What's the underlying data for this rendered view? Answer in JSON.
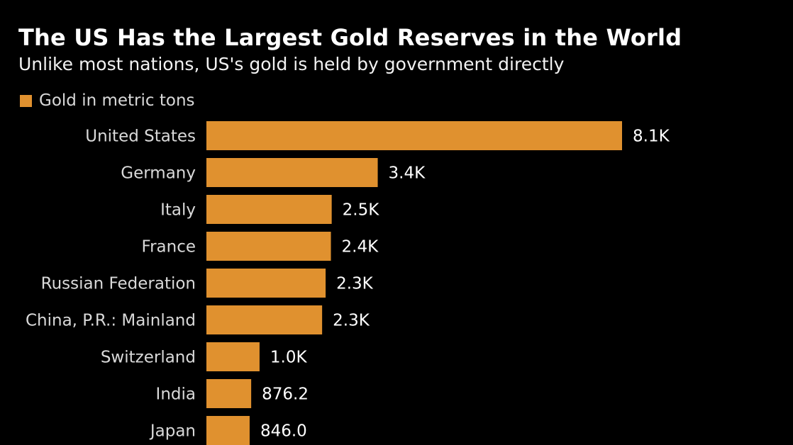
{
  "chart_data": {
    "type": "bar",
    "orientation": "horizontal",
    "title": "The US Has the Largest Gold Reserves in the World",
    "subtitle": "Unlike most nations, US's gold is held by government directly",
    "legend": "Gold in metric tons",
    "bar_color": "#e0912f",
    "categories": [
      "United States",
      "Germany",
      "Italy",
      "France",
      "Russian Federation",
      "China, P.R.: Mainland",
      "Switzerland",
      "India",
      "Japan"
    ],
    "values": [
      8133.5,
      3352.6,
      2451.8,
      2436.4,
      2332.7,
      2264.3,
      1040.0,
      876.2,
      846.0
    ],
    "value_labels": [
      "8.1K",
      "3.4K",
      "2.5K",
      "2.4K",
      "2.3K",
      "2.3K",
      "1.0K",
      "876.2",
      "846.0"
    ],
    "xlim": [
      0,
      8133.5
    ]
  }
}
